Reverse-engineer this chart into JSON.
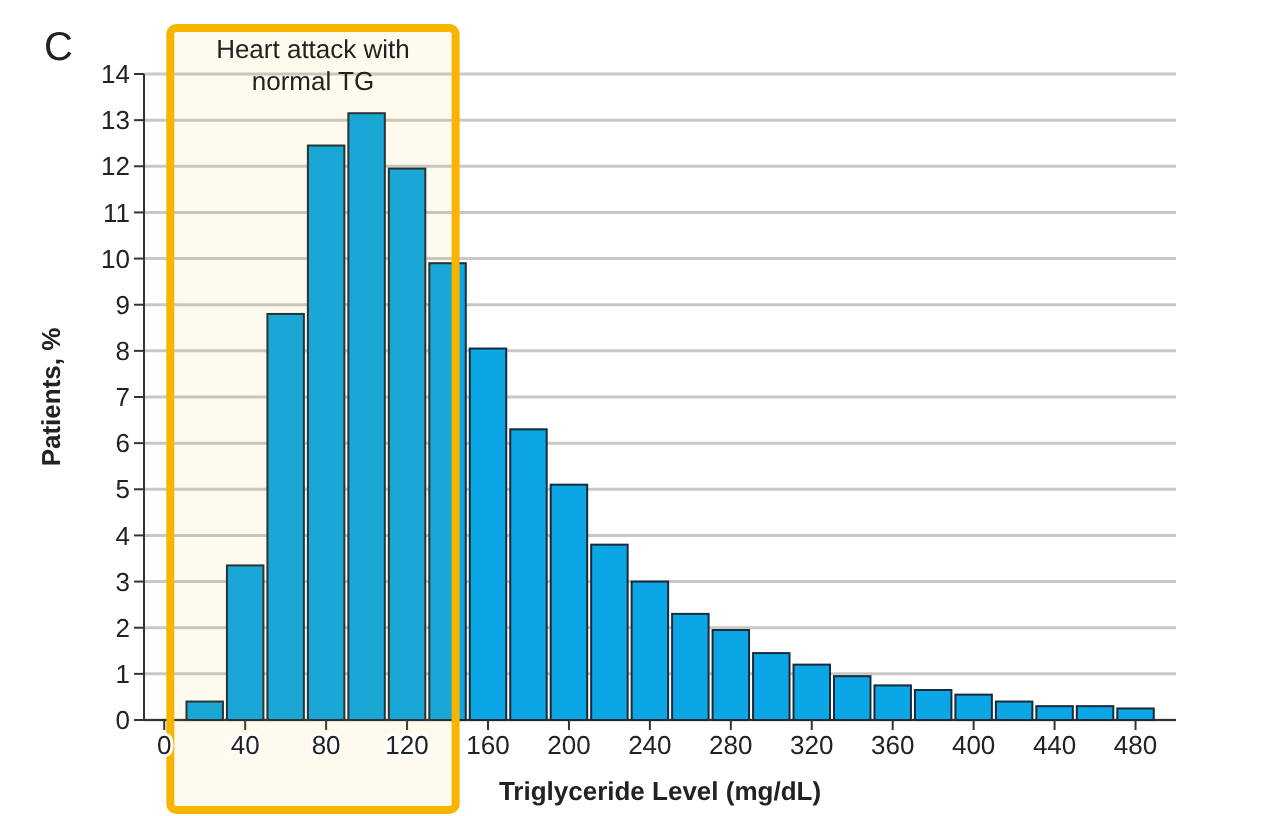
{
  "chart_data": {
    "type": "histogram",
    "title": "C",
    "xlabel": "Triglyceride Level (mg/dL)",
    "ylabel": "Patients, %",
    "bins": [
      10,
      30,
      50,
      70,
      90,
      110,
      130,
      150,
      170,
      190,
      210,
      230,
      250,
      270,
      290,
      310,
      330,
      350,
      370,
      390,
      410,
      430,
      450,
      470,
      490
    ],
    "values": [
      0.4,
      3.35,
      8.8,
      12.45,
      13.15,
      11.95,
      9.9,
      8.05,
      6.3,
      5.1,
      3.8,
      3.0,
      2.3,
      1.95,
      1.45,
      1.2,
      0.95,
      0.75,
      0.65,
      0.55,
      0.4,
      0.3,
      0.3,
      0.25
    ],
    "color": "#0aa6e6",
    "xlim": [
      -10,
      500
    ],
    "xticks": [
      0,
      40,
      80,
      120,
      160,
      200,
      240,
      280,
      320,
      360,
      400,
      440,
      480
    ],
    "ylim": [
      0,
      14
    ],
    "yticks": [
      0,
      1,
      2,
      3,
      4,
      5,
      6,
      7,
      8,
      9,
      10,
      11,
      12,
      13,
      14
    ],
    "grid": "y",
    "bands": [
      {
        "axis": "x",
        "from": 3,
        "to": 144,
        "label": "Heart attack with normal TG",
        "color": "#f7b500"
      }
    ]
  }
}
